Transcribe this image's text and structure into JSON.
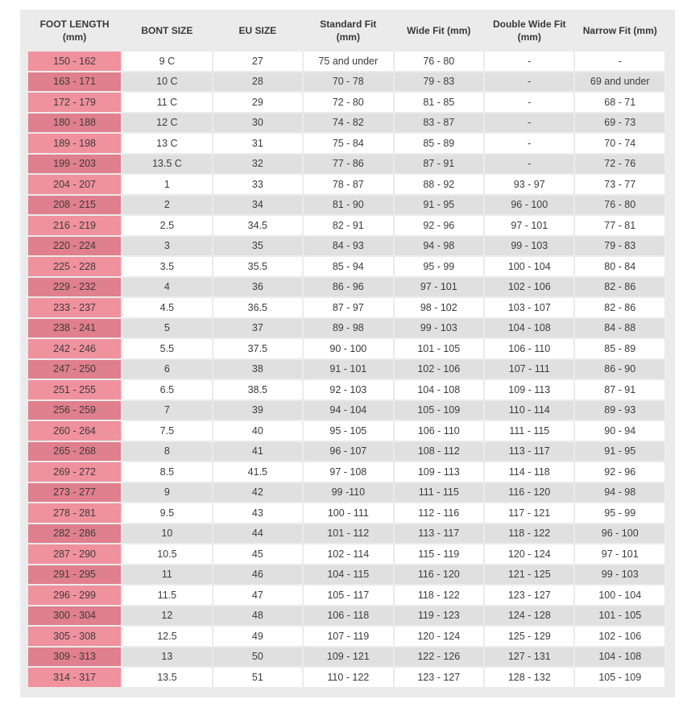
{
  "colors": {
    "page_bg": "#ffffff",
    "panel_bg": "#ebebeb",
    "row_odd": "#ffffff",
    "row_even": "#e0e0e0",
    "pink_light": "#f0919e",
    "pink_dark": "#e07f8d",
    "text": "#3c3c3c",
    "header_text": "#383838"
  },
  "chart_data": {
    "type": "table",
    "columns": [
      "FOOT LENGTH (mm)",
      "BONT SIZE",
      "EU SIZE",
      "Standard Fit (mm)",
      "Wide Fit (mm)",
      "Double Wide Fit (mm)",
      "Narrow Fit (mm)"
    ],
    "rows": [
      [
        "150 - 162",
        "9 C",
        "27",
        "75 and under",
        "76 - 80",
        "-",
        "-"
      ],
      [
        "163 - 171",
        "10 C",
        "28",
        "70 - 78",
        "79 - 83",
        "-",
        "69 and under"
      ],
      [
        "172 - 179",
        "11 C",
        "29",
        "72 - 80",
        "81 - 85",
        "-",
        "68 - 71"
      ],
      [
        "180 - 188",
        "12 C",
        "30",
        "74 - 82",
        "83 - 87",
        "-",
        "69 - 73"
      ],
      [
        "189 - 198",
        "13 C",
        "31",
        "75 - 84",
        "85 - 89",
        "-",
        "70 - 74"
      ],
      [
        "199 - 203",
        "13.5 C",
        "32",
        "77 - 86",
        "87 - 91",
        "-",
        "72 - 76"
      ],
      [
        "204 - 207",
        "1",
        "33",
        "78 - 87",
        "88 - 92",
        "93 - 97",
        "73 - 77"
      ],
      [
        "208 - 215",
        "2",
        "34",
        "81 - 90",
        "91 - 95",
        "96 - 100",
        "76 - 80"
      ],
      [
        "216 - 219",
        "2.5",
        "34.5",
        "82 - 91",
        "92 - 96",
        "97 - 101",
        "77 - 81"
      ],
      [
        "220 - 224",
        "3",
        "35",
        "84 - 93",
        "94 - 98",
        "99 - 103",
        "79 - 83"
      ],
      [
        "225 - 228",
        "3.5",
        "35.5",
        "85 - 94",
        "95 - 99",
        "100 - 104",
        "80 - 84"
      ],
      [
        "229 - 232",
        "4",
        "36",
        "86 - 96",
        "97 - 101",
        "102 - 106",
        "82 - 86"
      ],
      [
        "233 - 237",
        "4.5",
        "36.5",
        "87 - 97",
        "98 - 102",
        "103 - 107",
        "82 - 86"
      ],
      [
        "238 - 241",
        "5",
        "37",
        "89 - 98",
        "99 - 103",
        "104 - 108",
        "84 - 88"
      ],
      [
        "242 - 246",
        "5.5",
        "37.5",
        "90 - 100",
        "101 - 105",
        "106 - 110",
        "85 - 89"
      ],
      [
        "247 - 250",
        "6",
        "38",
        "91 - 101",
        "102 - 106",
        "107 - 111",
        "86 - 90"
      ],
      [
        "251 - 255",
        "6.5",
        "38.5",
        "92 - 103",
        "104 - 108",
        "109 - 113",
        "87 - 91"
      ],
      [
        "256 - 259",
        "7",
        "39",
        "94 - 104",
        "105 - 109",
        "110 - 114",
        "89 - 93"
      ],
      [
        "260 - 264",
        "7.5",
        "40",
        "95 - 105",
        "106 - 110",
        "111 - 115",
        "90 - 94"
      ],
      [
        "265 - 268",
        "8",
        "41",
        "96 - 107",
        "108 - 112",
        "113 - 117",
        "91 - 95"
      ],
      [
        "269 - 272",
        "8.5",
        "41.5",
        "97 - 108",
        "109 - 113",
        "114 - 118",
        "92 - 96"
      ],
      [
        "273 - 277",
        "9",
        "42",
        "99 -110",
        "111 - 115",
        "116 - 120",
        "94 - 98"
      ],
      [
        "278 - 281",
        "9.5",
        "43",
        "100 - 111",
        "112 - 116",
        "117 - 121",
        "95 - 99"
      ],
      [
        "282 - 286",
        "10",
        "44",
        "101 - 112",
        "113 - 117",
        "118 - 122",
        "96 - 100"
      ],
      [
        "287 - 290",
        "10.5",
        "45",
        "102 - 114",
        "115 - 119",
        "120 - 124",
        "97 - 101"
      ],
      [
        "291 - 295",
        "11",
        "46",
        "104 - 115",
        "116 - 120",
        "121 - 125",
        "99 - 103"
      ],
      [
        "296 - 299",
        "11.5",
        "47",
        "105 - 117",
        "118 - 122",
        "123 - 127",
        "100 - 104"
      ],
      [
        "300 - 304",
        "12",
        "48",
        "106 - 118",
        "119 - 123",
        "124 - 128",
        "101 - 105"
      ],
      [
        "305 - 308",
        "12.5",
        "49",
        "107 - 119",
        "120 - 124",
        "125 - 129",
        "102 - 106"
      ],
      [
        "309 - 313",
        "13",
        "50",
        "109 - 121",
        "122 - 126",
        "127 - 131",
        "104 - 108"
      ],
      [
        "314 - 317",
        "13.5",
        "51",
        "110 - 122",
        "123 - 127",
        "128 - 132",
        "105 - 109"
      ]
    ]
  }
}
